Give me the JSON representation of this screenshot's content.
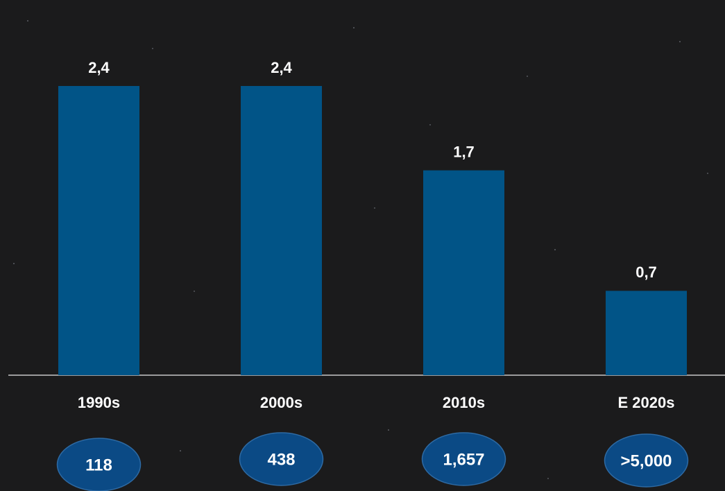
{
  "chart_data": {
    "type": "bar",
    "categories": [
      "1990s",
      "2000s",
      "2010s",
      "E 2020s"
    ],
    "values": [
      2.4,
      2.4,
      1.7,
      0.7
    ],
    "value_labels": [
      "2,4",
      "2,4",
      "1,7",
      "0,7"
    ],
    "color": "#015487",
    "counts": [
      "118",
      "438",
      "1,657",
      ">5,000"
    ],
    "count_color": "#0b4a85"
  }
}
